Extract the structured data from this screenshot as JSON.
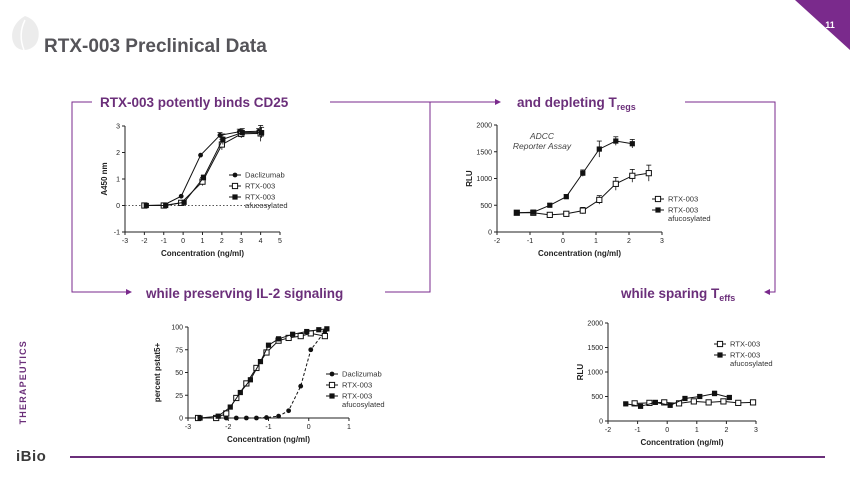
{
  "slide": {
    "title": "RTX-003 Preclinical Data",
    "page_number": "11",
    "side_label": "THERAPEUTICS",
    "logo": "iBio",
    "brand_color": "#6b2f7a",
    "accent_color": "#7a2a8c",
    "leaf_color": "#e8e8e8"
  },
  "headings": {
    "binds": "RTX-003 potently binds CD25",
    "depleting": "and depleting T",
    "depleting_sub": "regs",
    "preserving": "while preserving IL-2 signaling",
    "sparing": "while sparing T",
    "sparing_sub": "effs"
  },
  "chart_data": [
    {
      "id": "binding",
      "type": "line",
      "title": "",
      "xlabel": "Concentration (ng/ml)",
      "ylabel": "A450 nm",
      "xlim": [
        -3,
        5
      ],
      "ylim": [
        -1,
        3
      ],
      "xticks": [
        -3,
        -2,
        -1,
        0,
        1,
        2,
        3,
        4,
        5
      ],
      "yticks": [
        -1,
        0,
        1,
        2,
        3
      ],
      "baseline_dotted": 0,
      "legend": "right",
      "series": [
        {
          "name": "Daclizumab",
          "marker": "filled-circle",
          "x": [
            -2,
            -1,
            -0.1,
            0.9,
            1.9,
            2.9,
            3.9
          ],
          "y": [
            0,
            0.02,
            0.35,
            1.9,
            2.65,
            2.78,
            2.8
          ],
          "err": [
            0,
            0,
            0,
            0,
            0.1,
            0.1,
            0.1
          ]
        },
        {
          "name": "RTX-003",
          "marker": "open-square",
          "x": [
            -2,
            -1,
            -0.1,
            1.0,
            2.0,
            3.0,
            4.0
          ],
          "y": [
            0,
            0,
            0.1,
            0.9,
            2.3,
            2.7,
            2.72
          ],
          "err": [
            0,
            0,
            0,
            0.15,
            0.2,
            0.15,
            0.3
          ]
        },
        {
          "name": "RTX-003 afucosylated",
          "marker": "filled-square",
          "x": [
            -1.9,
            -0.9,
            0.05,
            1.05,
            2.05,
            3.05,
            4.05
          ],
          "y": [
            0,
            0,
            0.12,
            1.05,
            2.5,
            2.75,
            2.75
          ],
          "err": [
            0,
            0,
            0,
            0.1,
            0.2,
            0.15,
            0.2
          ]
        }
      ]
    },
    {
      "id": "adcc",
      "type": "line",
      "annotation": "ADCC Reporter Assay",
      "xlabel": "Concentration (ng/ml)",
      "ylabel": "RLU",
      "xlim": [
        -2,
        3
      ],
      "ylim": [
        0,
        2000
      ],
      "xticks": [
        -2,
        -1,
        0,
        1,
        2,
        3
      ],
      "yticks": [
        0,
        500,
        1000,
        1500,
        2000
      ],
      "legend": "right",
      "series": [
        {
          "name": "RTX-003",
          "marker": "open-square",
          "x": [
            -1.4,
            -0.9,
            -0.4,
            0.1,
            0.6,
            1.1,
            1.6,
            2.1,
            2.6
          ],
          "y": [
            360,
            360,
            320,
            340,
            400,
            600,
            900,
            1050,
            1100
          ],
          "err": [
            30,
            30,
            30,
            40,
            60,
            80,
            120,
            120,
            150
          ]
        },
        {
          "name": "RTX-003 afucosylated",
          "marker": "filled-square",
          "x": [
            -1.4,
            -0.9,
            -0.4,
            0.1,
            0.6,
            1.1,
            1.6,
            2.1
          ],
          "y": [
            360,
            370,
            500,
            660,
            1100,
            1550,
            1700,
            1650
          ],
          "err": [
            20,
            20,
            30,
            40,
            60,
            150,
            80,
            80
          ]
        }
      ]
    },
    {
      "id": "pstat5",
      "type": "line",
      "xlabel": "Concentration (ng/ml)",
      "ylabel": "percent pstat5+",
      "xlim": [
        -3,
        1
      ],
      "ylim": [
        0,
        100
      ],
      "xticks": [
        -3,
        -2,
        -1,
        0,
        1
      ],
      "yticks": [
        0,
        25,
        50,
        75,
        100
      ],
      "legend": "right",
      "series": [
        {
          "name": "Daclizumab",
          "marker": "filled-circle",
          "x": [
            -2.75,
            -2.3,
            -2.05,
            -1.8,
            -1.55,
            -1.3,
            -1.05,
            -0.75,
            -0.5,
            -0.2,
            0.05,
            0.4
          ],
          "y": [
            0,
            0,
            0,
            0,
            0,
            0,
            0.5,
            2,
            8,
            35,
            75,
            95
          ]
        },
        {
          "name": "RTX-003",
          "marker": "open-square",
          "x": [
            -2.75,
            -2.3,
            -2.05,
            -1.8,
            -1.55,
            -1.3,
            -1.05,
            -0.75,
            -0.5,
            -0.2,
            0.05,
            0.4
          ],
          "y": [
            0,
            0,
            5,
            22,
            38,
            55,
            72,
            85,
            88,
            90,
            93,
            90
          ]
        },
        {
          "name": "RTX-003 afucosylated",
          "marker": "filled-square",
          "x": [
            -2.7,
            -2.25,
            -1.95,
            -1.7,
            -1.45,
            -1.2,
            -1.0,
            -0.75,
            -0.4,
            -0.05,
            0.25,
            0.45
          ],
          "y": [
            0,
            2,
            12,
            28,
            42,
            62,
            80,
            87,
            92,
            95,
            97,
            98
          ]
        }
      ]
    },
    {
      "id": "teffs",
      "type": "line",
      "xlabel": "Concentration (ng/ml)",
      "ylabel": "RLU",
      "xlim": [
        -2,
        3
      ],
      "ylim": [
        0,
        2000
      ],
      "xticks": [
        -2,
        -1,
        0,
        1,
        2,
        3
      ],
      "yticks": [
        0,
        500,
        1000,
        1500,
        2000
      ],
      "legend": "top-right",
      "series": [
        {
          "name": "RTX-003",
          "marker": "open-square",
          "x": [
            -1.1,
            -0.6,
            -0.1,
            0.4,
            0.9,
            1.4,
            1.9,
            2.4,
            2.9
          ],
          "y": [
            360,
            370,
            380,
            360,
            400,
            380,
            400,
            370,
            380
          ],
          "err": [
            20,
            20,
            20,
            20,
            20,
            20,
            20,
            20,
            20
          ]
        },
        {
          "name": "RTX-003 afucosylated",
          "marker": "filled-square",
          "x": [
            -1.4,
            -0.9,
            -0.4,
            0.1,
            0.6,
            1.1,
            1.6,
            2.1
          ],
          "y": [
            350,
            300,
            380,
            320,
            460,
            500,
            560,
            480
          ],
          "err": [
            20,
            20,
            30,
            20,
            40,
            40,
            50,
            40
          ]
        }
      ]
    }
  ]
}
